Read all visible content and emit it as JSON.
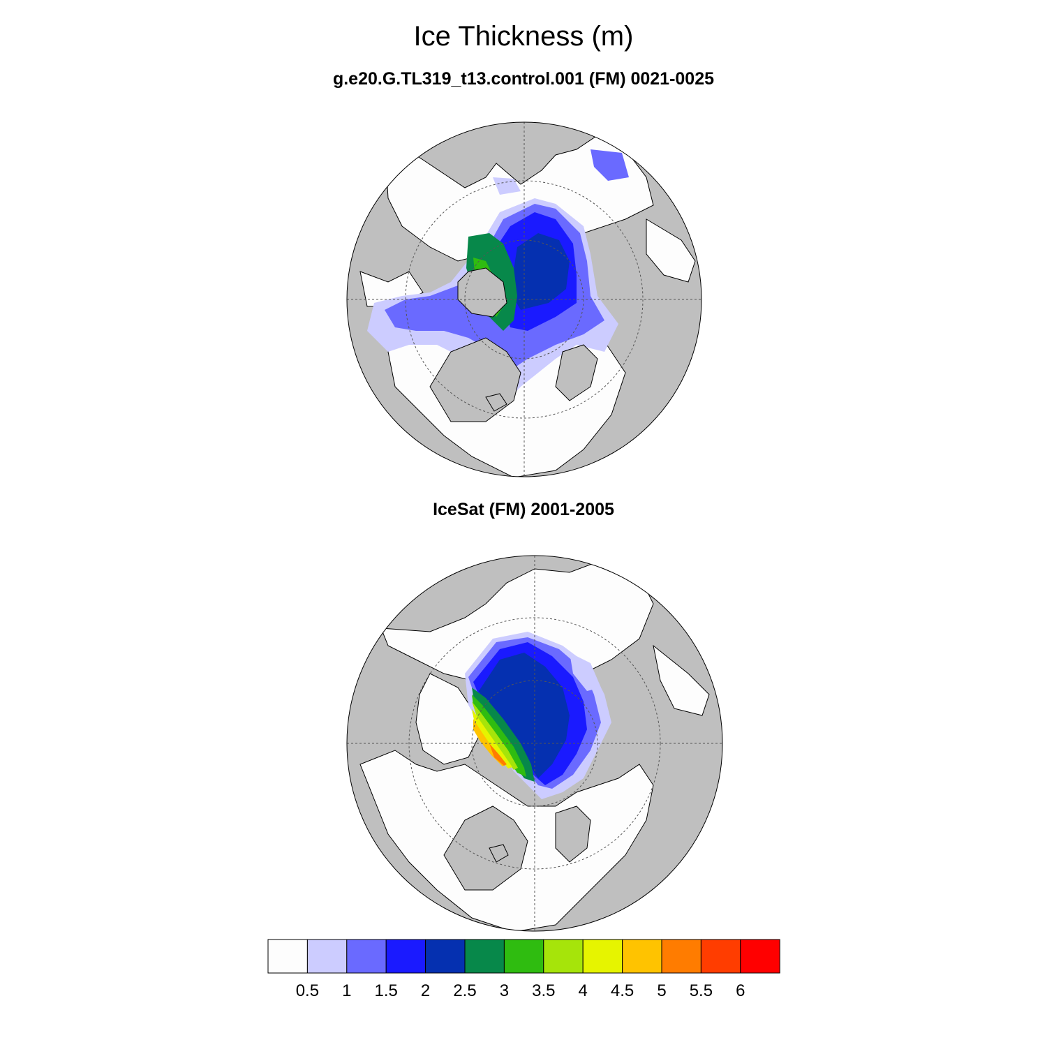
{
  "title": "Ice Thickness (m)",
  "panels": [
    {
      "subtitle": "g.e20.G.TL319_t13.control.001 (FM) 0021-0025"
    },
    {
      "subtitle": "IceSat (FM) 2001-2005"
    }
  ],
  "colorbar": {
    "levels": [
      "0.5",
      "1",
      "1.5",
      "2",
      "2.5",
      "3",
      "3.5",
      "4",
      "4.5",
      "5",
      "5.5",
      "6"
    ],
    "colors": [
      "#fdfdfd",
      "#ccccff",
      "#6a6aff",
      "#1a1aff",
      "#0530b0",
      "#07884a",
      "#2fbc10",
      "#a6e40a",
      "#e6f400",
      "#ffc300",
      "#ff7c00",
      "#ff3d00",
      "#ff0000"
    ]
  },
  "map_colors": {
    "land": "#bfbfbf",
    "ocean": "#fdfdfd",
    "coast": "#000000",
    "grid": "#555555"
  }
}
